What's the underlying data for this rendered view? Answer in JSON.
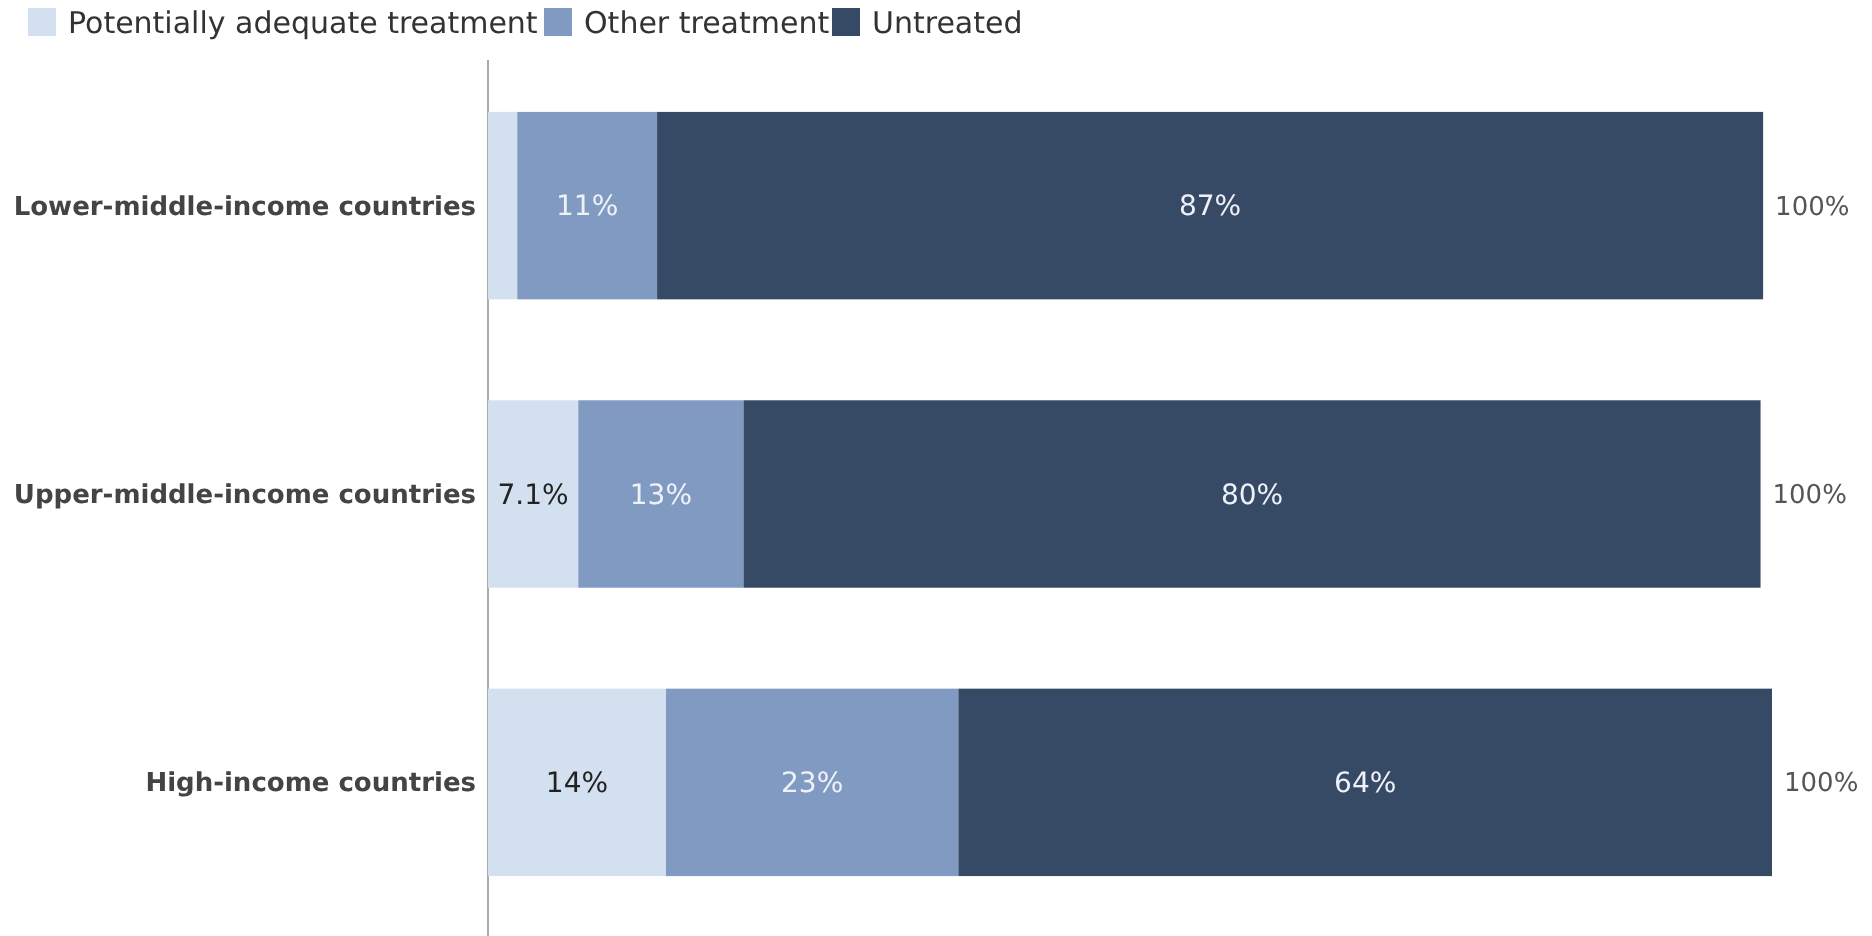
{
  "chart_data": {
    "type": "bar",
    "orientation": "horizontal",
    "stacked": true,
    "categories": [
      "Lower-middle-income countries",
      "Upper-middle-income countries",
      "High-income countries"
    ],
    "series": [
      {
        "name": "Potentially adequate treatment",
        "color": "#d3e0f0",
        "values": [
          2.3,
          7.1,
          14
        ],
        "value_labels": [
          null,
          "7.1%",
          "14%"
        ]
      },
      {
        "name": "Other treatment",
        "color": "#809ac2",
        "values": [
          11,
          13,
          23
        ],
        "value_labels": [
          "11%",
          "13%",
          "23%"
        ]
      },
      {
        "name": "Untreated",
        "color": "#364a66",
        "values": [
          87,
          80,
          64
        ],
        "value_labels": [
          "87%",
          "80%",
          "64%"
        ]
      }
    ],
    "totals": [
      "100%",
      "100%",
      "100%"
    ],
    "legend": "top left",
    "grid": false
  }
}
